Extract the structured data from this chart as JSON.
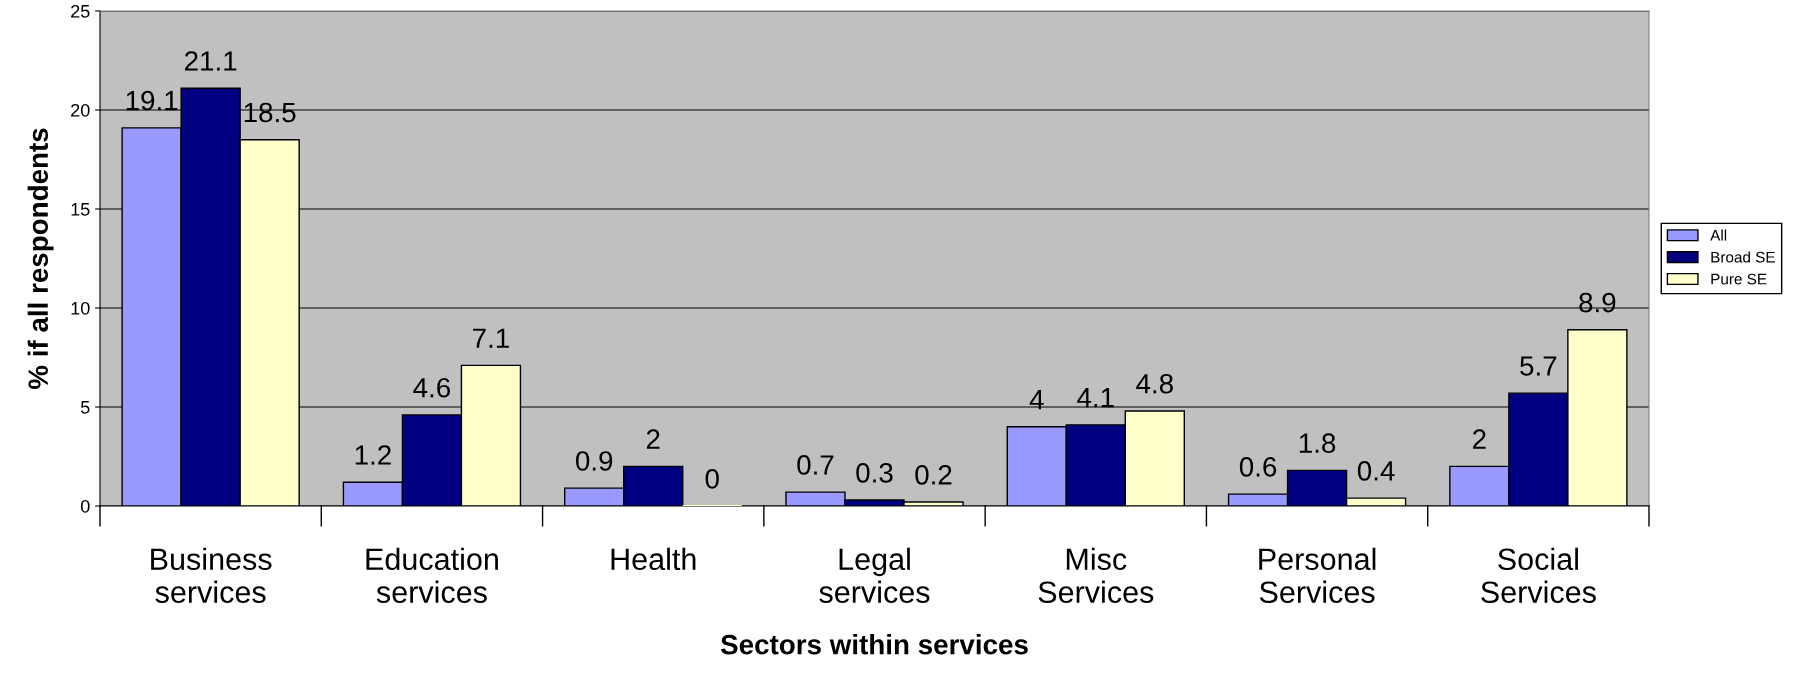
{
  "chart_data": {
    "type": "bar",
    "xlabel": "Sectors within services",
    "ylabel": "% if all respondents",
    "categories": [
      "Business\nservices",
      "Education\nservices",
      "Health",
      "Legal\nservices",
      "Misc\nServices",
      "Personal\nServices",
      "Social\nServices"
    ],
    "series": [
      {
        "name": "All",
        "color": "#9999ff",
        "values": [
          19.1,
          1.2,
          0.9,
          0.7,
          4,
          0.6,
          2
        ]
      },
      {
        "name": "Broad SE",
        "color": "#000080",
        "values": [
          21.1,
          4.6,
          2,
          0.3,
          4.1,
          1.8,
          5.7
        ]
      },
      {
        "name": "Pure SE",
        "color": "#ffffcc",
        "values": [
          18.5,
          7.1,
          0,
          0.2,
          4.8,
          0.4,
          8.9
        ]
      }
    ],
    "ylim": [
      0,
      25
    ],
    "yticks": [
      0,
      5,
      10,
      15,
      20,
      25
    ],
    "grid": "y",
    "legend": "right",
    "data_labels": true
  }
}
